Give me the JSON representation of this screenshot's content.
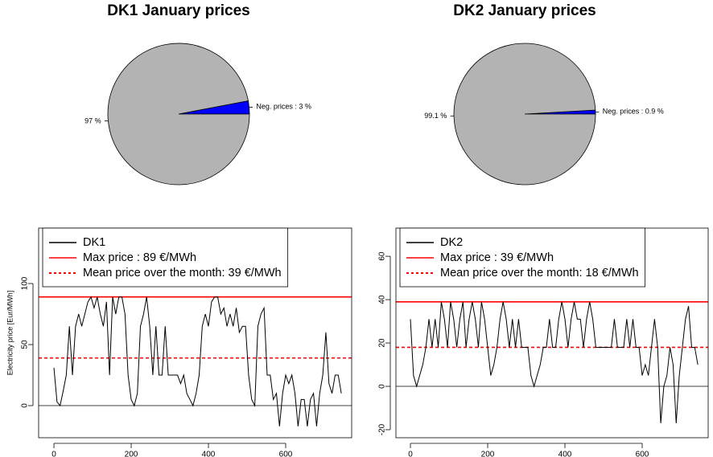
{
  "chart_data": [
    {
      "type": "pie",
      "title": "DK1 January prices",
      "values": [
        3,
        97
      ],
      "value_labels": [
        "Neg. prices : 3 %",
        "97 %"
      ],
      "colors": [
        "#0000ff",
        "#b3b3b3"
      ]
    },
    {
      "type": "pie",
      "title": "DK2 January prices",
      "values": [
        0.9,
        99.1
      ],
      "value_labels": [
        "Neg. prices : 0.9 %",
        "99.1 %"
      ],
      "colors": [
        "#0000ff",
        "#b3b3b3"
      ]
    },
    {
      "type": "line",
      "ylabel": "Electricity price [Eur/MWh]",
      "legend": "top-left",
      "x": [
        0,
        8,
        16,
        24,
        32,
        40,
        48,
        56,
        64,
        72,
        80,
        88,
        96,
        104,
        112,
        120,
        128,
        136,
        144,
        152,
        160,
        168,
        176,
        184,
        192,
        200,
        208,
        216,
        224,
        232,
        240,
        248,
        256,
        264,
        272,
        280,
        288,
        296,
        304,
        312,
        320,
        328,
        336,
        344,
        352,
        360,
        368,
        376,
        384,
        392,
        400,
        408,
        416,
        424,
        432,
        440,
        448,
        456,
        464,
        472,
        480,
        488,
        496,
        504,
        512,
        520,
        528,
        536,
        544,
        552,
        560,
        568,
        576,
        584,
        592,
        600,
        608,
        616,
        624,
        632,
        640,
        648,
        656,
        664,
        672,
        680,
        688,
        696,
        704,
        712,
        720,
        728,
        736,
        744
      ],
      "series": [
        {
          "name": "DK1",
          "color": "#000000",
          "values": [
            31,
            3,
            0,
            12,
            25,
            65,
            25,
            65,
            75,
            65,
            75,
            85,
            89,
            80,
            89,
            75,
            65,
            85,
            25,
            89,
            75,
            89,
            89,
            75,
            25,
            5,
            0,
            10,
            65,
            75,
            89,
            65,
            25,
            65,
            25,
            25,
            65,
            25,
            25,
            25,
            25,
            18,
            25,
            10,
            5,
            0,
            10,
            25,
            65,
            75,
            65,
            85,
            89,
            89,
            75,
            80,
            65,
            75,
            65,
            80,
            60,
            65,
            65,
            25,
            5,
            0,
            65,
            75,
            80,
            25,
            25,
            5,
            10,
            -17,
            10,
            25,
            18,
            25,
            10,
            -17,
            5,
            5,
            -17,
            5,
            10,
            -17,
            10,
            25,
            60,
            18,
            10,
            25,
            25,
            10
          ]
        }
      ],
      "hlines": [
        {
          "name": "Max price : 89 €/MWh",
          "value": 89,
          "color": "#ff0000",
          "dash": "solid"
        },
        {
          "name": "Mean price over the month: 39 €/MWh",
          "value": 39,
          "color": "#ff0000",
          "dash": "dashed"
        },
        {
          "value": 0,
          "color": "#000000",
          "dash": "solid"
        }
      ],
      "xlim": [
        -39.6,
        770.8
      ],
      "ylim": [
        -26.3,
        145.4
      ],
      "xticks": [
        0,
        200,
        400,
        600
      ],
      "yticks": [
        0,
        50,
        100
      ]
    },
    {
      "type": "line",
      "legend": "top-left",
      "x": [
        0,
        8,
        16,
        24,
        32,
        40,
        48,
        56,
        64,
        72,
        80,
        88,
        96,
        104,
        112,
        120,
        128,
        136,
        144,
        152,
        160,
        168,
        176,
        184,
        192,
        200,
        208,
        216,
        224,
        232,
        240,
        248,
        256,
        264,
        272,
        280,
        288,
        296,
        304,
        312,
        320,
        328,
        336,
        344,
        352,
        360,
        368,
        376,
        384,
        392,
        400,
        408,
        416,
        424,
        432,
        440,
        448,
        456,
        464,
        472,
        480,
        488,
        496,
        504,
        512,
        520,
        528,
        536,
        544,
        552,
        560,
        568,
        576,
        584,
        592,
        600,
        608,
        616,
        624,
        632,
        640,
        648,
        656,
        664,
        672,
        680,
        688,
        696,
        704,
        712,
        720,
        728,
        736,
        744
      ],
      "series": [
        {
          "name": "DK2",
          "color": "#000000",
          "values": [
            31,
            5,
            0,
            5,
            10,
            18,
            31,
            18,
            31,
            18,
            39,
            31,
            18,
            39,
            31,
            18,
            31,
            39,
            18,
            31,
            39,
            31,
            18,
            39,
            31,
            18,
            5,
            10,
            18,
            31,
            39,
            31,
            18,
            31,
            18,
            31,
            18,
            18,
            18,
            5,
            0,
            5,
            10,
            18,
            18,
            31,
            18,
            18,
            31,
            39,
            31,
            18,
            31,
            39,
            31,
            31,
            18,
            31,
            39,
            31,
            18,
            18,
            18,
            18,
            18,
            18,
            31,
            18,
            18,
            18,
            31,
            18,
            31,
            18,
            18,
            5,
            10,
            5,
            18,
            31,
            18,
            -17,
            0,
            5,
            18,
            10,
            -17,
            5,
            18,
            31,
            37,
            18,
            18,
            10
          ]
        }
      ],
      "hlines": [
        {
          "name": "Max price : 39 €/MWh",
          "value": 39,
          "color": "#ff0000",
          "dash": "solid"
        },
        {
          "name": "Mean price over the month: 18 €/MWh",
          "value": 18,
          "color": "#ff0000",
          "dash": "dashed"
        },
        {
          "value": 0,
          "color": "#000000",
          "dash": "solid"
        }
      ],
      "xlim": [
        -37.5,
        770.8
      ],
      "ylim": [
        -23.7,
        73
      ],
      "xticks": [
        0,
        200,
        400,
        600
      ],
      "yticks": [
        -20,
        0,
        20,
        40,
        60
      ]
    }
  ]
}
